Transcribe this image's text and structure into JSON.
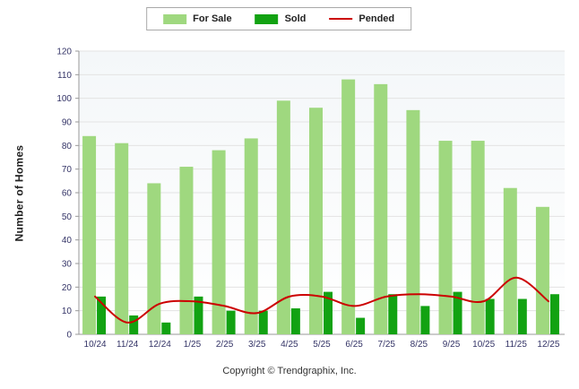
{
  "legend": {
    "for_sale": "For Sale",
    "sold": "Sold",
    "pended": "Pended"
  },
  "ylabel": "Number of Homes",
  "footer": "Copyright © Trendgraphix, Inc.",
  "colors": {
    "for_sale": "#9fd87f",
    "sold": "#12a212",
    "pended": "#cc0000",
    "axis_text": "#333366",
    "grid": "#e3e3e3",
    "axis_line": "#999999"
  },
  "chart_data": {
    "type": "bar",
    "title": "",
    "xlabel": "",
    "ylabel": "Number of Homes",
    "ylim": [
      0,
      120
    ],
    "ytick_step": 10,
    "grid": true,
    "legend_position": "top",
    "categories": [
      "10/24",
      "11/24",
      "12/24",
      "1/25",
      "2/25",
      "3/25",
      "4/25",
      "5/25",
      "6/25",
      "7/25",
      "8/25",
      "9/25",
      "10/25",
      "11/25",
      "12/25"
    ],
    "series": [
      {
        "name": "For Sale",
        "type": "bar",
        "color": "#9fd87f",
        "values": [
          84,
          81,
          64,
          71,
          78,
          83,
          99,
          96,
          108,
          106,
          95,
          82,
          82,
          62,
          54
        ]
      },
      {
        "name": "Sold",
        "type": "bar",
        "color": "#12a212",
        "values": [
          16,
          8,
          5,
          16,
          10,
          10,
          11,
          18,
          7,
          17,
          12,
          18,
          15,
          15,
          17
        ]
      },
      {
        "name": "Pended",
        "type": "line",
        "color": "#cc0000",
        "values": [
          16,
          5,
          13,
          14,
          12,
          9,
          16,
          16,
          12,
          16,
          17,
          16,
          14,
          24,
          14
        ]
      }
    ]
  }
}
